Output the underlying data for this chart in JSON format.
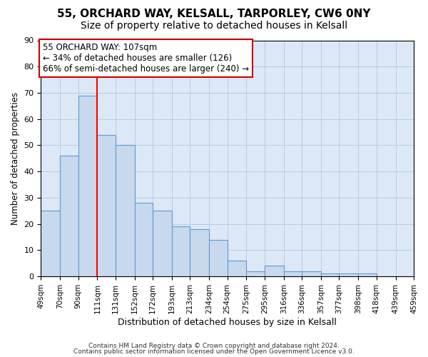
{
  "title1": "55, ORCHARD WAY, KELSALL, TARPORLEY, CW6 0NY",
  "title2": "Size of property relative to detached houses in Kelsall",
  "xlabel": "Distribution of detached houses by size in Kelsall",
  "ylabel": "Number of detached properties",
  "bar_values": [
    25,
    46,
    69,
    54,
    50,
    28,
    25,
    19,
    18,
    14,
    6,
    2,
    4,
    2,
    2,
    1,
    1,
    1,
    0,
    0
  ],
  "bin_edges": [
    49,
    70,
    90,
    111,
    131,
    152,
    172,
    193,
    213,
    234,
    254,
    275,
    295,
    316,
    336,
    357,
    377,
    398,
    418,
    439,
    459
  ],
  "x_tick_labels": [
    "49sqm",
    "70sqm",
    "90sqm",
    "111sqm",
    "131sqm",
    "152sqm",
    "172sqm",
    "193sqm",
    "213sqm",
    "234sqm",
    "254sqm",
    "275sqm",
    "295sqm",
    "316sqm",
    "336sqm",
    "357sqm",
    "377sqm",
    "398sqm",
    "418sqm",
    "439sqm",
    "459sqm"
  ],
  "bar_facecolor": "#c8d9ee",
  "bar_edgecolor": "#5b9bd5",
  "redline_x": 111,
  "annotation_text": "55 ORCHARD WAY: 107sqm\n← 34% of detached houses are smaller (126)\n66% of semi-detached houses are larger (240) →",
  "annotation_box_color": "#ffffff",
  "annotation_box_edge": "#cc0000",
  "ylim": [
    0,
    90
  ],
  "yticks": [
    0,
    10,
    20,
    30,
    40,
    50,
    60,
    70,
    80,
    90
  ],
  "grid_color": "#b8cce4",
  "background_color": "#dce8f5",
  "footer_text1": "Contains HM Land Registry data © Crown copyright and database right 2024.",
  "footer_text2": "Contains public sector information licensed under the Open Government Licence v3.0.",
  "title1_fontsize": 11,
  "title2_fontsize": 10
}
